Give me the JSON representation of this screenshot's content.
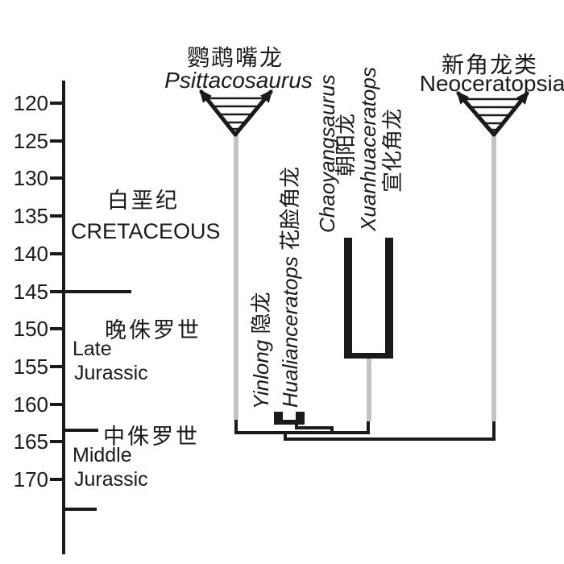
{
  "colors": {
    "line_black": "#1a1a1a",
    "ghost_lineage_gray": "#c3c3c3",
    "background": "#ffffff"
  },
  "time_axis": {
    "ticks": [
      120,
      125,
      130,
      135,
      140,
      145,
      150,
      155,
      160,
      165,
      170
    ],
    "boundary_lines_ma": [
      145,
      163.5,
      174
    ]
  },
  "periods": {
    "cretaceous": {
      "zh": "白垩纪",
      "en": "CRETACEOUS"
    },
    "late_jurassic": {
      "zh": "晚侏罗世",
      "en_line1": "Late",
      "en_line2": "Jurassic"
    },
    "middle_jurassic": {
      "zh": "中侏罗世",
      "en_line1": "Middle",
      "en_line2": "Jurassic"
    }
  },
  "clades": {
    "psittacosaurus": {
      "zh": "鹦鹉嘴龙",
      "latin": "Psittacosaurus"
    },
    "neoceratopsia": {
      "zh": "新角龙类",
      "latin": "Neoceratopsia"
    }
  },
  "taxa": {
    "yinlong": {
      "latin": "Yinlong",
      "zh": "隐龙"
    },
    "hualianceratops": {
      "latin": "Hualianceratops",
      "zh": "花脸角龙"
    },
    "chaoyangsaurus": {
      "latin": "Chaoyangsaurus",
      "zh": "朝阳龙"
    },
    "xuanhuaceratops": {
      "latin": "Xuanhuaceratops",
      "zh": "宣化角龙"
    }
  },
  "phylogeny": {
    "newick": "((Psittacosaurus,((Yinlong,Hualianceratops),(Chaoyangsaurus,Xuanhuaceratops))),Neoceratopsia)",
    "observed_range_bars_ma": {
      "Chaoyangsaurus": [
        138,
        153
      ],
      "Xuanhuaceratops": [
        138,
        153
      ],
      "Yinlong": [
        161,
        163
      ],
      "Hualianceratops": [
        161,
        163
      ]
    },
    "clade_triangle_base_ma": 124
  }
}
